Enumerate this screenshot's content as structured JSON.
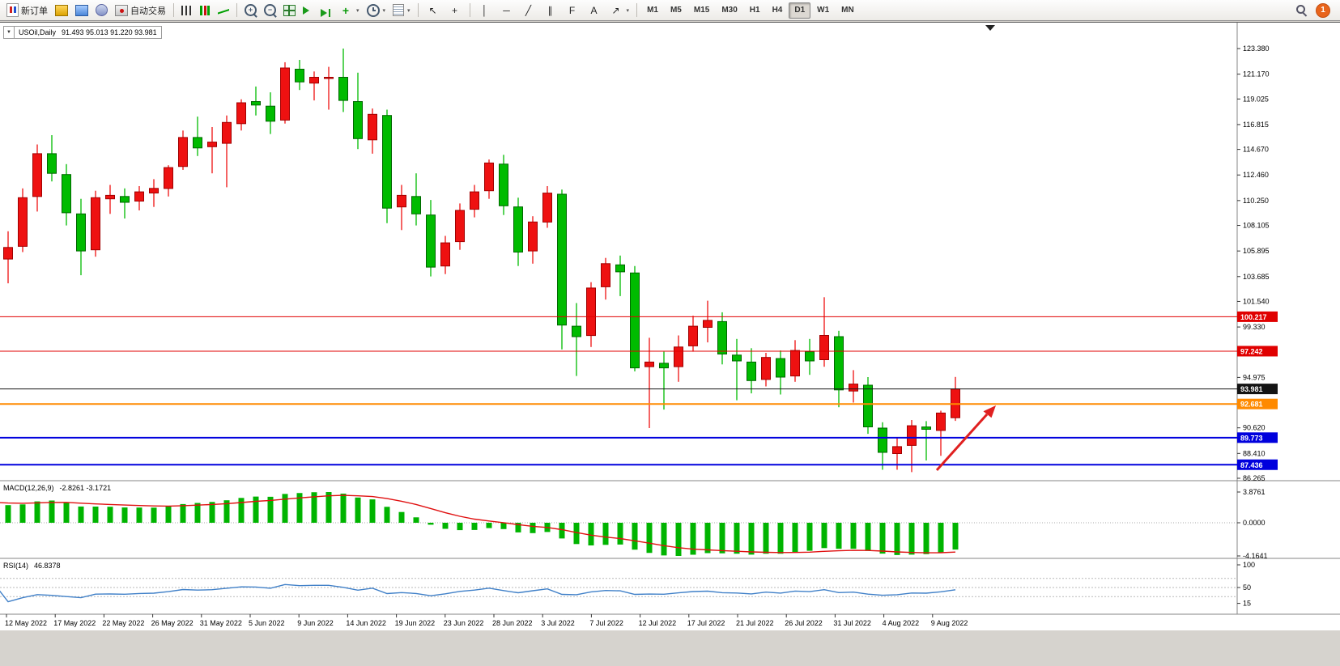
{
  "toolbar": {
    "items": [
      {
        "type": "button",
        "name": "new-order-button",
        "icon": "order",
        "label": "新订单"
      },
      {
        "type": "icon",
        "name": "charts-grid-icon",
        "icon": "goldchart"
      },
      {
        "type": "icon",
        "name": "profiles-icon",
        "icon": "profiles"
      },
      {
        "type": "icon",
        "name": "alerts-icon",
        "icon": "sound"
      },
      {
        "type": "button",
        "name": "autotrading-button",
        "icon": "robot",
        "label": "自动交易"
      },
      {
        "type": "sep"
      },
      {
        "type": "icon",
        "name": "bar-chart-icon",
        "icon": "bars"
      },
      {
        "type": "icon",
        "name": "candlestick-chart-icon",
        "icon": "candles"
      },
      {
        "type": "icon",
        "name": "line-chart-icon",
        "icon": "linechart"
      },
      {
        "type": "sep"
      },
      {
        "type": "icon",
        "name": "zoom-in-icon",
        "icon": "zoom",
        "glyph": "+"
      },
      {
        "type": "icon",
        "name": "zoom-out-icon",
        "icon": "zoom",
        "glyph": "−"
      },
      {
        "type": "icon",
        "name": "tile-windows-icon",
        "icon": "tile"
      },
      {
        "type": "icon",
        "name": "auto-scroll-icon",
        "icon": "autoscroll"
      },
      {
        "type": "icon",
        "name": "chart-shift-icon",
        "icon": "shift"
      },
      {
        "type": "icon",
        "name": "indicators-icon",
        "icon": "plus",
        "glyph": "+",
        "caret": true
      },
      {
        "type": "icon",
        "name": "periods-icon",
        "icon": "clock",
        "caret": true
      },
      {
        "type": "icon",
        "name": "templates-icon",
        "icon": "template",
        "caret": true
      },
      {
        "type": "sep"
      },
      {
        "type": "icon",
        "name": "cursor-icon",
        "icon": "glyphdark",
        "glyph": "↖"
      },
      {
        "type": "icon",
        "name": "crosshair-icon",
        "icon": "glyphdark",
        "glyph": "+"
      },
      {
        "type": "sep"
      },
      {
        "type": "icon",
        "name": "vertical-line-icon",
        "icon": "glyphdark",
        "glyph": "│"
      },
      {
        "type": "icon",
        "name": "horizontal-line-icon",
        "icon": "glyphdark",
        "glyph": "─"
      },
      {
        "type": "icon",
        "name": "trendline-icon",
        "icon": "glyphdark",
        "glyph": "╱"
      },
      {
        "type": "icon",
        "name": "channel-icon",
        "icon": "glyphdark",
        "glyph": "∥"
      },
      {
        "type": "icon",
        "name": "fibonacci-icon",
        "icon": "glyphdark",
        "glyph": "F"
      },
      {
        "type": "icon",
        "name": "text-icon",
        "icon": "glyphdark",
        "glyph": "A"
      },
      {
        "type": "icon",
        "name": "arrows-icon",
        "icon": "glyphdark",
        "glyph": "↗",
        "caret": true
      },
      {
        "type": "sep"
      }
    ],
    "timeframes": [
      "M1",
      "M5",
      "M15",
      "M30",
      "H1",
      "H4",
      "D1",
      "W1",
      "MN"
    ],
    "active_timeframe": "D1",
    "notification_count": "1"
  },
  "chart": {
    "info": {
      "dropdown_glyph": "▼",
      "symbol": "USOil,Daily",
      "ohlc": "91.493 95.013 91.220 93.981"
    },
    "macd_header": {
      "name": "MACD(12,26,9)",
      "values": "-2.8261 -3.1721"
    },
    "rsi_header": {
      "name": "RSI(14)",
      "value": "46.8378"
    }
  },
  "chart_data": {
    "type": "candlestick",
    "symbol": "USOil",
    "timeframe": "Daily",
    "quote": {
      "open": 91.493,
      "high": 95.013,
      "low": 91.22,
      "close": 93.981
    },
    "colors": {
      "up": "#ee1111",
      "up_border": "#a00000",
      "down": "#00bb00",
      "down_border": "#006600",
      "macd": "#00b400",
      "signal": "#e01010",
      "rsi": "#4080c8",
      "background": "#ffffff"
    },
    "y_ticks": [
      "123.380",
      "121.170",
      "119.025",
      "116.815",
      "114.670",
      "112.460",
      "110.250",
      "108.105",
      "105.895",
      "103.685",
      "101.540",
      "99.330",
      "94.975",
      "90.620",
      "88.410",
      "86.265"
    ],
    "levels": [
      {
        "value": 100.217,
        "label": "100.217",
        "color": "#e00000",
        "width": 1
      },
      {
        "value": 97.242,
        "label": "97.242",
        "color": "#e00000",
        "width": 1
      },
      {
        "value": 93.981,
        "label": "93.981",
        "color": "#141414",
        "width": 1
      },
      {
        "value": 92.681,
        "label": "92.681",
        "color": "#ff8a00",
        "width": 2
      },
      {
        "value": 89.773,
        "label": "89.773",
        "color": "#0000dd",
        "width": 2
      },
      {
        "value": 87.436,
        "label": "87.436",
        "color": "#0000dd",
        "width": 2
      }
    ],
    "x_labels": [
      "12 May 2022",
      "17 May 2022",
      "22 May 2022",
      "26 May 2022",
      "31 May 2022",
      "5 Jun 2022",
      "9 Jun 2022",
      "14 Jun 2022",
      "19 Jun 2022",
      "23 Jun 2022",
      "28 Jun 2022",
      "3 Jul 2022",
      "7 Jul 2022",
      "12 Jul 2022",
      "17 Jul 2022",
      "21 Jul 2022",
      "26 Jul 2022",
      "31 Jul 2022",
      "4 Aug 2022",
      "9 Aug 2022"
    ],
    "candles": [
      [
        104.8,
        108.4,
        104.0,
        107.9
      ],
      [
        105.2,
        107.6,
        103.1,
        106.2
      ],
      [
        106.3,
        111.3,
        105.8,
        110.5
      ],
      [
        110.6,
        115.1,
        109.3,
        114.3
      ],
      [
        114.3,
        115.9,
        111.9,
        112.6
      ],
      [
        112.5,
        113.4,
        108.1,
        109.2
      ],
      [
        109.1,
        110.4,
        103.8,
        105.9
      ],
      [
        106.0,
        111.1,
        105.4,
        110.5
      ],
      [
        110.4,
        111.6,
        109.1,
        110.7
      ],
      [
        110.6,
        111.3,
        108.7,
        110.1
      ],
      [
        110.2,
        111.5,
        109.4,
        111.0
      ],
      [
        110.9,
        112.1,
        109.7,
        111.3
      ],
      [
        111.3,
        113.3,
        110.6,
        113.1
      ],
      [
        113.2,
        116.3,
        112.9,
        115.7
      ],
      [
        115.7,
        117.5,
        114.1,
        114.8
      ],
      [
        114.9,
        116.6,
        112.6,
        115.3
      ],
      [
        115.2,
        117.6,
        111.4,
        117.0
      ],
      [
        116.9,
        119.0,
        116.3,
        118.7
      ],
      [
        118.8,
        120.1,
        117.6,
        118.5
      ],
      [
        118.4,
        119.6,
        116.0,
        117.1
      ],
      [
        117.2,
        122.2,
        116.9,
        121.7
      ],
      [
        121.6,
        122.4,
        119.8,
        120.5
      ],
      [
        120.4,
        121.4,
        118.9,
        120.9
      ],
      [
        120.8,
        121.8,
        118.1,
        120.9
      ],
      [
        120.9,
        123.38,
        117.9,
        118.9
      ],
      [
        118.8,
        121.3,
        114.7,
        115.6
      ],
      [
        115.5,
        118.2,
        114.3,
        117.7
      ],
      [
        117.6,
        118.1,
        108.3,
        109.6
      ],
      [
        109.7,
        111.6,
        107.7,
        110.7
      ],
      [
        110.6,
        112.6,
        108.1,
        109.1
      ],
      [
        109.0,
        110.3,
        103.7,
        104.5
      ],
      [
        104.6,
        107.2,
        103.9,
        106.6
      ],
      [
        106.7,
        110.0,
        106.0,
        109.4
      ],
      [
        109.5,
        111.6,
        108.8,
        111.0
      ],
      [
        111.1,
        113.8,
        110.4,
        113.5
      ],
      [
        113.4,
        114.2,
        109.0,
        109.8
      ],
      [
        109.7,
        110.5,
        104.6,
        105.8
      ],
      [
        105.9,
        108.9,
        104.8,
        108.4
      ],
      [
        108.4,
        111.5,
        107.9,
        110.9
      ],
      [
        110.8,
        111.2,
        97.4,
        99.5
      ],
      [
        99.4,
        101.4,
        95.1,
        98.5
      ],
      [
        98.6,
        103.2,
        97.6,
        102.7
      ],
      [
        102.8,
        105.3,
        101.7,
        104.8
      ],
      [
        104.7,
        105.5,
        102.0,
        104.1
      ],
      [
        104.0,
        104.6,
        95.5,
        95.8
      ],
      [
        95.9,
        98.4,
        90.6,
        96.3
      ],
      [
        96.2,
        97.2,
        92.2,
        95.8
      ],
      [
        95.9,
        98.6,
        94.6,
        97.6
      ],
      [
        97.7,
        100.3,
        97.2,
        99.4
      ],
      [
        99.3,
        101.6,
        98.0,
        99.9
      ],
      [
        99.8,
        100.6,
        96.1,
        97.0
      ],
      [
        96.9,
        98.3,
        93.0,
        96.4
      ],
      [
        96.3,
        97.5,
        93.6,
        94.7
      ],
      [
        94.8,
        97.1,
        94.2,
        96.7
      ],
      [
        96.6,
        97.3,
        93.5,
        95.0
      ],
      [
        95.1,
        98.2,
        94.6,
        97.3
      ],
      [
        97.2,
        98.3,
        95.2,
        96.4
      ],
      [
        96.5,
        101.9,
        95.9,
        98.6
      ],
      [
        98.5,
        99.0,
        92.4,
        93.9
      ],
      [
        93.8,
        95.6,
        92.8,
        94.4
      ],
      [
        94.3,
        95.0,
        90.1,
        90.7
      ],
      [
        90.6,
        91.1,
        87.0,
        88.5
      ],
      [
        88.4,
        89.8,
        87.0,
        89.0
      ],
      [
        89.1,
        91.3,
        86.8,
        90.8
      ],
      [
        90.7,
        91.2,
        87.8,
        90.5
      ],
      [
        90.4,
        92.1,
        88.2,
        91.9
      ],
      [
        91.493,
        95.013,
        91.22,
        93.981
      ]
    ],
    "macd": {
      "fast": 12,
      "slow": 26,
      "signal_period": 9,
      "value": "-2.8261",
      "signal_value": "-3.1721",
      "scale": [
        "3.8761",
        "0.0000",
        "-4.1641"
      ]
    },
    "rsi": {
      "period": 14,
      "value": "46.8378",
      "scale": [
        "100",
        "50",
        "15"
      ],
      "levels": [
        70,
        50,
        30
      ]
    },
    "trend_arrow": {
      "from_price": [
        "2022-08-05",
        87.0
      ],
      "to_price": [
        "2022-08-16",
        92.0
      ],
      "color": "#e02020"
    }
  }
}
